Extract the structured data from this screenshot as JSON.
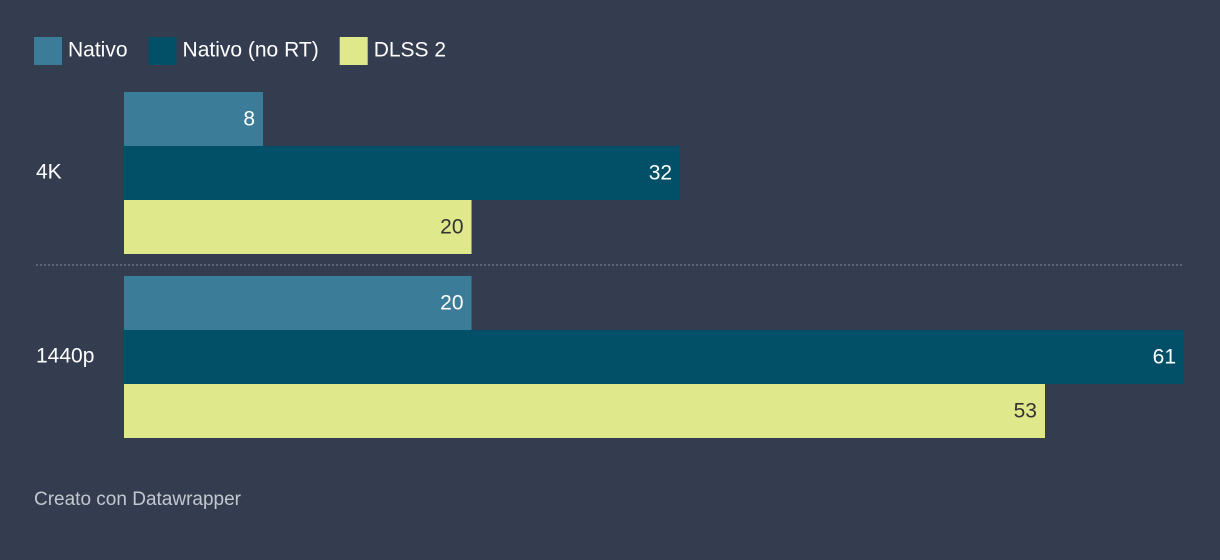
{
  "chart_data": {
    "type": "bar",
    "orientation": "horizontal",
    "categories": [
      "4K",
      "1440p"
    ],
    "series": [
      {
        "name": "Nativo",
        "color": "#3b7c98",
        "values": [
          8,
          20
        ]
      },
      {
        "name": "Nativo (no RT)",
        "color": "#024f68",
        "values": [
          32,
          61
        ]
      },
      {
        "name": "DLSS 2",
        "color": "#dfe88b",
        "values": [
          20,
          53
        ]
      }
    ],
    "xlim": [
      0,
      61
    ],
    "footer": "Creato con Datawrapper"
  }
}
